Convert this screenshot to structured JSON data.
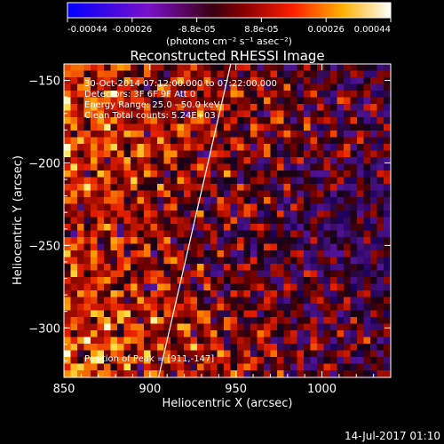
{
  "colorbar": {
    "ticks": [
      "-0.00044",
      "-0.00026",
      "-8.8e-05",
      "8.8e-05",
      "0.00026",
      "0.00044"
    ],
    "unit": "(photons cm⁻² s⁻¹ asec⁻²)",
    "range": [
      -0.00044,
      0.00044
    ]
  },
  "chart_data": {
    "type": "heatmap",
    "title": "Reconstructed RHESSI Image",
    "xlabel": "Heliocentric X (arcsec)",
    "ylabel": "Heliocentric Y (arcsec)",
    "xlim": [
      850,
      1040
    ],
    "ylim": [
      -330,
      -140
    ],
    "xticks": [
      850,
      900,
      950,
      1000
    ],
    "yticks": [
      -150,
      -200,
      -250,
      -300
    ],
    "xtick_labels": [
      "850",
      "900",
      "950",
      "1000"
    ],
    "ytick_labels": [
      "−150",
      "−200",
      "−250",
      "−300"
    ],
    "peak": [
      911,
      -147
    ],
    "annotations": [
      "30-Oct-2014 07:12:00.000 to 07:22:00.000",
      "Detectors: 3F 6F 9F Att 0",
      "Energy Range: 25.0 - 50.0 keV",
      "Clean    Total counts: 5.24E+03"
    ],
    "peak_label": "Position of Peak = [911,-147]",
    "limb_line": [
      [
        905,
        -330
      ],
      [
        947,
        -140
      ]
    ]
  },
  "footer": {
    "date": "14-Jul-2017 01:10"
  }
}
